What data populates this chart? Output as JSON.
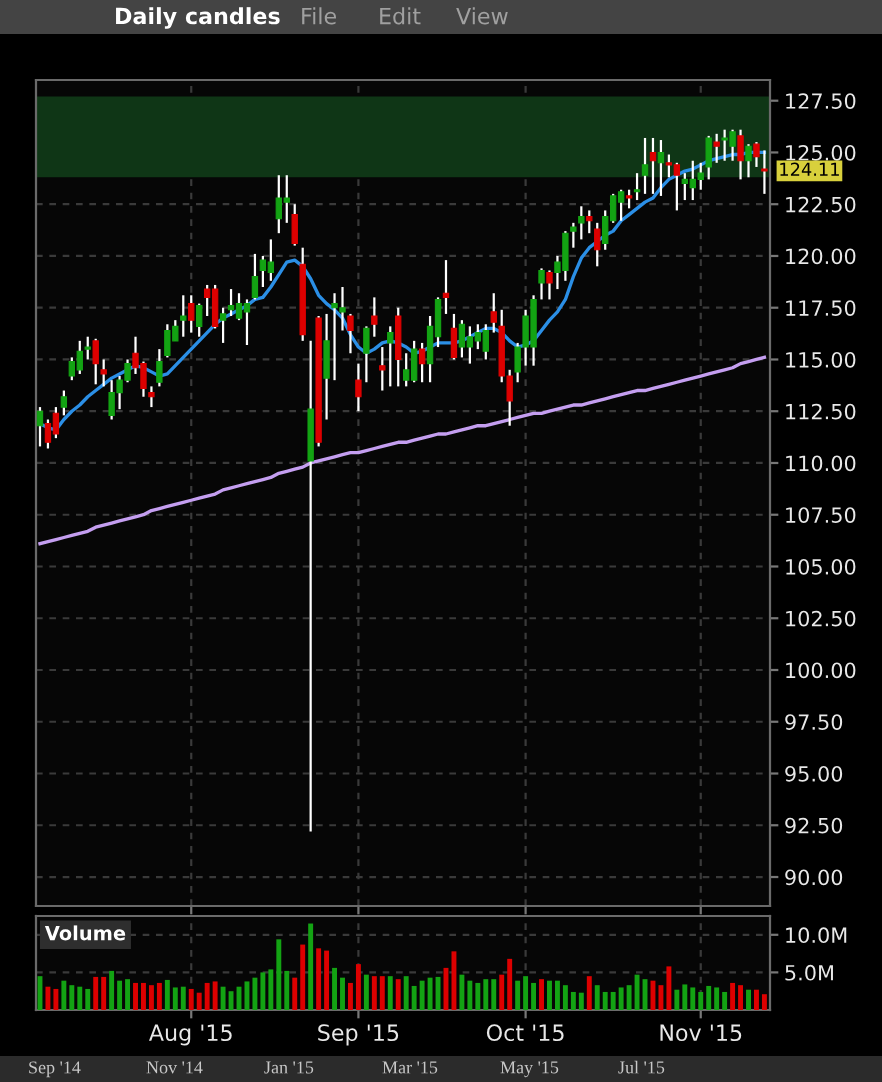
{
  "chart_data": [
    {
      "type": "candlestick",
      "title": "Daily candles",
      "annotations": [
        "File",
        "Edit",
        "View"
      ],
      "categories": [
        null,
        null,
        null,
        null,
        null,
        null,
        null,
        null,
        null,
        null,
        null,
        null,
        null,
        null,
        null,
        null,
        null,
        null,
        null,
        null,
        null,
        null,
        null,
        null,
        null,
        null,
        null,
        null,
        null,
        null,
        null,
        null,
        null,
        null,
        null,
        null,
        null,
        null,
        null,
        null,
        null,
        null,
        null,
        null,
        null,
        null,
        null,
        null,
        null,
        null,
        null,
        null,
        null,
        null,
        null,
        null,
        null,
        null,
        null,
        null,
        null,
        null,
        null,
        null,
        null,
        null,
        null,
        null,
        null,
        null,
        null,
        null,
        null,
        null,
        null,
        null,
        null,
        null,
        null,
        null,
        null,
        null,
        null,
        null,
        null,
        null,
        null,
        null,
        null,
        null,
        null,
        null
      ],
      "ohlc": [
        [
          111.8,
          112.7,
          110.8,
          112.5
        ],
        [
          111.9,
          112.1,
          110.7,
          111.0
        ],
        [
          112.4,
          112.7,
          111.2,
          111.4
        ],
        [
          112.7,
          113.5,
          112.3,
          113.2
        ],
        [
          114.2,
          115.1,
          114.0,
          114.9
        ],
        [
          114.5,
          115.9,
          114.3,
          115.4
        ],
        [
          115.5,
          116.1,
          115.0,
          115.6
        ],
        [
          115.9,
          116.0,
          113.8,
          114.8
        ],
        [
          114.5,
          115.0,
          113.7,
          114.3
        ],
        [
          112.3,
          114.0,
          112.1,
          113.4
        ],
        [
          113.4,
          114.2,
          112.6,
          114.0
        ],
        [
          114.0,
          115.0,
          113.9,
          114.8
        ],
        [
          115.3,
          116.1,
          114.3,
          114.6
        ],
        [
          114.8,
          114.9,
          113.2,
          113.6
        ],
        [
          113.4,
          113.7,
          112.7,
          113.2
        ],
        [
          113.9,
          115.5,
          113.7,
          114.9
        ],
        [
          115.2,
          116.7,
          115.1,
          116.4
        ],
        [
          115.9,
          116.9,
          115.9,
          116.6
        ],
        [
          116.9,
          118.1,
          116.1,
          117.1
        ],
        [
          117.7,
          118.1,
          116.3,
          116.9
        ],
        [
          116.6,
          117.7,
          116.1,
          117.6
        ],
        [
          118.4,
          118.6,
          117.1,
          118.0
        ],
        [
          118.4,
          118.6,
          116.5,
          116.6
        ],
        [
          116.9,
          117.5,
          115.8,
          117.2
        ],
        [
          117.4,
          118.4,
          117.1,
          117.6
        ],
        [
          117.0,
          118.2,
          116.9,
          117.7
        ],
        [
          117.3,
          117.9,
          115.7,
          117.7
        ],
        [
          118.0,
          120.1,
          117.9,
          119.0
        ],
        [
          119.3,
          120.0,
          118.5,
          119.8
        ],
        [
          119.2,
          120.8,
          118.8,
          119.7
        ],
        [
          121.8,
          123.9,
          121.1,
          122.8
        ],
        [
          122.6,
          123.9,
          121.6,
          122.8
        ],
        [
          122.0,
          122.5,
          120.5,
          120.6
        ],
        [
          119.6,
          120.4,
          115.9,
          116.2
        ],
        [
          110.1,
          115.9,
          92.2,
          112.6
        ],
        [
          117.0,
          117.1,
          110.8,
          111.0
        ],
        [
          114.1,
          117.2,
          112.1,
          115.9
        ],
        [
          117.5,
          118.2,
          114.0,
          117.7
        ],
        [
          117.3,
          118.5,
          116.4,
          117.5
        ],
        [
          117.1,
          117.2,
          115.3,
          116.4
        ],
        [
          114.0,
          114.8,
          112.5,
          113.2
        ],
        [
          115.3,
          116.6,
          113.9,
          116.5
        ],
        [
          117.1,
          118.0,
          116.1,
          116.7
        ],
        [
          114.7,
          115.6,
          113.5,
          114.5
        ],
        [
          115.8,
          116.6,
          113.7,
          116.3
        ],
        [
          117.1,
          117.5,
          113.7,
          115.0
        ],
        [
          114.0,
          115.3,
          113.7,
          114.5
        ],
        [
          114.0,
          115.9,
          113.9,
          115.5
        ],
        [
          115.5,
          115.8,
          113.9,
          114.8
        ],
        [
          114.8,
          117.1,
          113.9,
          116.6
        ],
        [
          116.1,
          118.0,
          115.6,
          117.9
        ],
        [
          118.2,
          119.8,
          117.2,
          118.0
        ],
        [
          116.5,
          117.2,
          115.0,
          115.1
        ],
        [
          115.6,
          116.9,
          115.1,
          116.7
        ],
        [
          115.6,
          116.6,
          114.8,
          116.1
        ],
        [
          115.9,
          116.7,
          115.5,
          116.3
        ],
        [
          115.4,
          116.7,
          115.0,
          116.4
        ],
        [
          117.3,
          118.2,
          116.3,
          116.8
        ],
        [
          116.6,
          117.4,
          113.9,
          114.2
        ],
        [
          114.2,
          114.5,
          111.8,
          113.0
        ],
        [
          114.4,
          115.8,
          113.9,
          115.6
        ],
        [
          115.6,
          117.4,
          114.7,
          117.1
        ],
        [
          115.6,
          118.1,
          114.7,
          117.9
        ],
        [
          118.7,
          119.4,
          117.9,
          119.3
        ],
        [
          119.2,
          119.3,
          117.9,
          118.7
        ],
        [
          119.2,
          120.0,
          118.4,
          119.7
        ],
        [
          119.3,
          121.2,
          118.8,
          121.1
        ],
        [
          121.2,
          121.6,
          120.4,
          121.4
        ],
        [
          121.6,
          122.4,
          120.8,
          121.9
        ],
        [
          121.9,
          122.2,
          121.1,
          121.7
        ],
        [
          121.3,
          121.6,
          119.5,
          120.3
        ],
        [
          120.6,
          122.2,
          120.3,
          121.9
        ],
        [
          121.7,
          123.0,
          121.6,
          122.9
        ],
        [
          122.6,
          123.2,
          121.7,
          123.1
        ],
        [
          122.9,
          123.2,
          122.3,
          122.8
        ],
        [
          123.1,
          124.0,
          122.7,
          123.2
        ],
        [
          123.9,
          125.7,
          123.0,
          124.4
        ],
        [
          125.0,
          125.7,
          123.0,
          124.6
        ],
        [
          124.5,
          125.6,
          122.9,
          125.0
        ],
        [
          124.5,
          124.9,
          123.8,
          124.4
        ],
        [
          124.4,
          124.5,
          122.2,
          123.9
        ],
        [
          123.5,
          124.0,
          122.7,
          123.7
        ],
        [
          123.3,
          124.6,
          122.7,
          123.7
        ],
        [
          123.7,
          124.5,
          123.2,
          124.0
        ],
        [
          124.3,
          125.8,
          123.7,
          125.7
        ],
        [
          125.5,
          125.9,
          124.5,
          125.3
        ],
        [
          125.6,
          126.1,
          124.6,
          125.7
        ],
        [
          125.3,
          126.1,
          124.6,
          126.0
        ],
        [
          125.8,
          126.1,
          123.7,
          124.6
        ],
        [
          124.6,
          125.4,
          123.8,
          125.3
        ],
        [
          125.4,
          125.5,
          124.3,
          124.8
        ],
        [
          124.2,
          125.1,
          123.0,
          124.11
        ]
      ],
      "value_labels": [
        null,
        null,
        null,
        null,
        null,
        null,
        null,
        null,
        null,
        null,
        null,
        null,
        null,
        null,
        null,
        null,
        null,
        null,
        null,
        null,
        null,
        null,
        null,
        null,
        null,
        null,
        null,
        null,
        null,
        null,
        null,
        null,
        null,
        null,
        null,
        null,
        null,
        null,
        null,
        null,
        null,
        null,
        null,
        null,
        null,
        null,
        null,
        null,
        null,
        null,
        null,
        null,
        null,
        null,
        null,
        null,
        null,
        null,
        null,
        null,
        null,
        null,
        null,
        null,
        null,
        null,
        null,
        null,
        null,
        null,
        null,
        null,
        null,
        null,
        null,
        null,
        null,
        null,
        null,
        null,
        null,
        null,
        null,
        null,
        null,
        null,
        null,
        null,
        null,
        null,
        null,
        "124.11"
      ],
      "colors": [
        "#13a313",
        "#dd0000",
        "#dd0000",
        "#13a313",
        "#13a313",
        "#13a313",
        "#13a313",
        "#dd0000",
        "#dd0000",
        "#13a313",
        "#13a313",
        "#13a313",
        "#dd0000",
        "#dd0000",
        "#dd0000",
        "#13a313",
        "#13a313",
        "#13a313",
        "#13a313",
        "#dd0000",
        "#13a313",
        "#dd0000",
        "#dd0000",
        "#13a313",
        "#13a313",
        "#13a313",
        "#13a313",
        "#13a313",
        "#13a313",
        "#13a313",
        "#13a313",
        "#13a313",
        "#dd0000",
        "#dd0000",
        "#13a313",
        "#dd0000",
        "#13a313",
        "#13a313",
        "#13a313",
        "#dd0000",
        "#dd0000",
        "#13a313",
        "#dd0000",
        "#dd0000",
        "#13a313",
        "#dd0000",
        "#13a313",
        "#13a313",
        "#dd0000",
        "#13a313",
        "#13a313",
        "#dd0000",
        "#dd0000",
        "#13a313",
        "#13a313",
        "#13a313",
        "#13a313",
        "#dd0000",
        "#dd0000",
        "#dd0000",
        "#13a313",
        "#13a313",
        "#13a313",
        "#13a313",
        "#dd0000",
        "#13a313",
        "#13a313",
        "#13a313",
        "#13a313",
        "#dd0000",
        "#dd0000",
        "#13a313",
        "#13a313",
        "#13a313",
        "#dd0000",
        "#13a313",
        "#13a313",
        "#dd0000",
        "#13a313",
        "#dd0000",
        "#dd0000",
        "#13a313",
        "#13a313",
        "#13a313",
        "#13a313",
        "#dd0000",
        "#13a313",
        "#13a313",
        "#dd0000",
        "#13a313",
        "#dd0000",
        "#dd0000"
      ],
      "series": [
        {
          "type": "line",
          "color": "#2b8fe6",
          "values": [
            111.9,
            111.7,
            111.6,
            112.1,
            112.5,
            112.8,
            113.2,
            113.5,
            113.8,
            114.1,
            114.3,
            114.5,
            114.7,
            114.6,
            114.4,
            114.2,
            114.3,
            114.7,
            115.1,
            115.5,
            115.9,
            116.3,
            116.7,
            117.0,
            117.2,
            117.4,
            117.6,
            117.9,
            118.0,
            118.5,
            119.1,
            119.7,
            119.8,
            119.5,
            118.9,
            118.1,
            117.7,
            117.4,
            117.0,
            116.2,
            115.6,
            115.3,
            115.5,
            115.8,
            115.9,
            115.8,
            115.6,
            115.3,
            115.4,
            115.6,
            115.8,
            115.8,
            115.8,
            115.9,
            116.1,
            116.3,
            116.5,
            116.5,
            116.3,
            115.9,
            115.6,
            115.7,
            115.9,
            116.4,
            116.9,
            117.3,
            117.9,
            119.0,
            119.9,
            120.4,
            120.7,
            121.0,
            121.2,
            121.7,
            122.0,
            122.3,
            122.6,
            122.8,
            123.3,
            123.7,
            123.9,
            124.1,
            124.2,
            124.4,
            124.6,
            124.7,
            124.8,
            124.9,
            124.9,
            125.0,
            125.0,
            125.0
          ]
        },
        {
          "type": "line",
          "color": "#c49ef0",
          "values": [
            106.1,
            106.2,
            106.3,
            106.4,
            106.5,
            106.6,
            106.7,
            106.9,
            107.0,
            107.1,
            107.2,
            107.3,
            107.4,
            107.5,
            107.7,
            107.8,
            107.9,
            108.0,
            108.1,
            108.2,
            108.3,
            108.4,
            108.5,
            108.7,
            108.8,
            108.9,
            109.0,
            109.1,
            109.2,
            109.3,
            109.5,
            109.6,
            109.7,
            109.8,
            110.0,
            110.1,
            110.2,
            110.3,
            110.4,
            110.5,
            110.5,
            110.6,
            110.7,
            110.8,
            110.9,
            111.0,
            111.0,
            111.1,
            111.2,
            111.3,
            111.4,
            111.4,
            111.5,
            111.6,
            111.7,
            111.8,
            111.8,
            111.9,
            112.0,
            112.1,
            112.2,
            112.3,
            112.4,
            112.4,
            112.5,
            112.6,
            112.7,
            112.8,
            112.8,
            112.9,
            113.0,
            113.1,
            113.2,
            113.3,
            113.4,
            113.5,
            113.5,
            113.6,
            113.7,
            113.8,
            113.9,
            114.0,
            114.1,
            114.2,
            114.3,
            114.4,
            114.5,
            114.6,
            114.8,
            114.9,
            115.0,
            115.1
          ]
        }
      ],
      "bands": [
        {
          "axis": "y",
          "from": 123.8,
          "to": 127.7,
          "color": "#0f3616"
        }
      ],
      "ylim": [
        88.6,
        128.5
      ],
      "yticks": [
        {
          "value": 90,
          "label": "90.00"
        },
        {
          "value": 92.5,
          "label": "92.50"
        },
        {
          "value": 95,
          "label": "95.00"
        },
        {
          "value": 97.5,
          "label": "97.50"
        },
        {
          "value": 100,
          "label": "100.00"
        },
        {
          "value": 102.5,
          "label": "102.50"
        },
        {
          "value": 105,
          "label": "105.00"
        },
        {
          "value": 107.5,
          "label": "107.50"
        },
        {
          "value": 110,
          "label": "110.00"
        },
        {
          "value": 112.5,
          "label": "112.50"
        },
        {
          "value": 115,
          "label": "115.00"
        },
        {
          "value": 117.5,
          "label": "117.50"
        },
        {
          "value": 120,
          "label": "120.00"
        },
        {
          "value": 122.5,
          "label": "122.50"
        },
        {
          "value": 125,
          "label": "125.00"
        },
        {
          "value": 127.5,
          "label": "127.50"
        }
      ],
      "grid": true,
      "tick_labels": "y"
    },
    {
      "type": "bar",
      "title": "Volume",
      "annotations": [
        "Sep '14",
        "Nov '14",
        "Jan '15",
        "Mar '15",
        "May '15",
        "Jul '15"
      ],
      "categories": [
        null,
        null,
        null,
        null,
        null,
        null,
        null,
        null,
        null,
        null,
        null,
        null,
        null,
        null,
        null,
        null,
        null,
        null,
        null,
        "Aug '15",
        null,
        null,
        null,
        null,
        null,
        null,
        null,
        null,
        null,
        null,
        null,
        null,
        null,
        null,
        null,
        null,
        null,
        null,
        null,
        null,
        "Sep '15",
        null,
        null,
        null,
        null,
        null,
        null,
        null,
        null,
        null,
        null,
        null,
        null,
        null,
        null,
        null,
        null,
        null,
        null,
        null,
        null,
        "Oct '15",
        null,
        null,
        null,
        null,
        null,
        null,
        null,
        null,
        null,
        null,
        null,
        null,
        null,
        null,
        null,
        null,
        null,
        null,
        null,
        null,
        null,
        "Nov '15",
        null,
        null,
        null,
        null,
        null,
        null,
        null,
        null
      ],
      "values": [
        4.5,
        3.1,
        2.8,
        3.9,
        3.3,
        3.1,
        2.8,
        4.4,
        4.4,
        5.2,
        3.9,
        4.1,
        3.6,
        3.6,
        3.3,
        3.6,
        4.0,
        3.0,
        3.1,
        2.8,
        2.3,
        3.6,
        3.8,
        3.1,
        2.5,
        3.1,
        3.8,
        4.3,
        5.0,
        5.4,
        9.4,
        5.2,
        4.3,
        8.7,
        11.5,
        8.2,
        7.9,
        5.6,
        4.3,
        3.6,
        6.1,
        4.7,
        4.5,
        4.5,
        4.5,
        4.1,
        4.5,
        3.2,
        3.9,
        4.3,
        4.4,
        5.6,
        7.8,
        4.7,
        3.9,
        3.6,
        4.1,
        4.1,
        4.7,
        6.8,
        3.9,
        4.5,
        3.6,
        4.1,
        3.9,
        3.9,
        3.3,
        2.4,
        2.3,
        4.5,
        3.3,
        2.4,
        2.4,
        3.0,
        3.3,
        4.7,
        4.1,
        3.9,
        3.3,
        5.8,
        2.7,
        3.4,
        3.0,
        2.4,
        3.2,
        3.0,
        2.4,
        3.6,
        3.3,
        2.7,
        2.7,
        2.1
      ],
      "colors": [
        "#13a313",
        "#dd0000",
        "#dd0000",
        "#13a313",
        "#13a313",
        "#13a313",
        "#13a313",
        "#dd0000",
        "#dd0000",
        "#13a313",
        "#13a313",
        "#13a313",
        "#dd0000",
        "#dd0000",
        "#dd0000",
        "#dd0000",
        "#13a313",
        "#13a313",
        "#13a313",
        "#dd0000",
        "#dd0000",
        "#dd0000",
        "#dd0000",
        "#13a313",
        "#13a313",
        "#13a313",
        "#13a313",
        "#13a313",
        "#13a313",
        "#13a313",
        "#13a313",
        "#13a313",
        "#dd0000",
        "#dd0000",
        "#13a313",
        "#dd0000",
        "#dd0000",
        "#13a313",
        "#13a313",
        "#dd0000",
        "#dd0000",
        "#13a313",
        "#dd0000",
        "#dd0000",
        "#13a313",
        "#dd0000",
        "#13a313",
        "#13a313",
        "#13a313",
        "#13a313",
        "#13a313",
        "#dd0000",
        "#dd0000",
        "#13a313",
        "#13a313",
        "#13a313",
        "#13a313",
        "#13a313",
        "#dd0000",
        "#dd0000",
        "#13a313",
        "#13a313",
        "#13a313",
        "#dd0000",
        "#13a313",
        "#13a313",
        "#13a313",
        "#13a313",
        "#13a313",
        "#dd0000",
        "#13a313",
        "#13a313",
        "#13a313",
        "#13a313",
        "#13a313",
        "#13a313",
        "#13a313",
        "#dd0000",
        "#dd0000",
        "#dd0000",
        "#13a313",
        "#13a313",
        "#13a313",
        "#13a313",
        "#13a313",
        "#13a313",
        "#13a313",
        "#dd0000",
        "#dd0000",
        "#13a313",
        "#dd0000",
        "#dd0000"
      ],
      "ylim": [
        0,
        12.5
      ],
      "yticks": [
        {
          "value": 5,
          "label": "5.0M"
        },
        {
          "value": 10,
          "label": "10.0M"
        }
      ],
      "grid": true
    }
  ]
}
